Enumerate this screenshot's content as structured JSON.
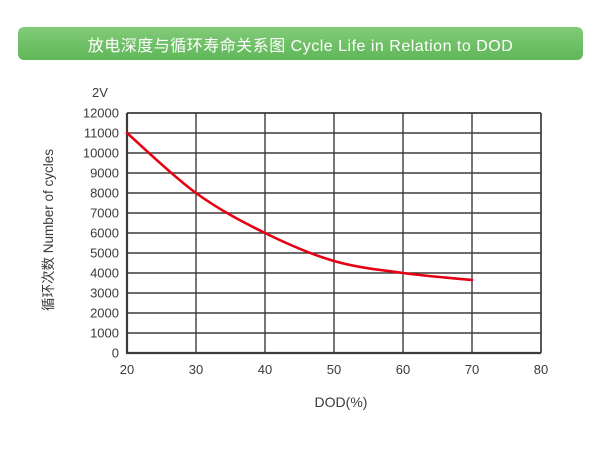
{
  "banner": {
    "title": "放电深度与循环寿命关系图 Cycle Life in Relation to DOD",
    "bg_top": "#82cb78",
    "bg_bottom": "#5fb758",
    "text_color": "#ffffff"
  },
  "chart_data": {
    "type": "line",
    "title": "放电深度与循环寿命关系图 Cycle Life in Relation to DOD",
    "annotation": "2V",
    "xlabel": "DOD(%)",
    "ylabel": "循环次数 Number of cycles",
    "xlim": [
      20,
      80
    ],
    "ylim": [
      0,
      12000
    ],
    "x_ticks": [
      20,
      30,
      40,
      50,
      60,
      70,
      80
    ],
    "y_ticks": [
      0,
      1000,
      2000,
      3000,
      4000,
      5000,
      6000,
      7000,
      8000,
      9000,
      10000,
      11000,
      12000
    ],
    "grid": true,
    "legend_position": "none",
    "series": [
      {
        "name": "2V",
        "color": "#e60013",
        "x": [
          20,
          30,
          40,
          50,
          60,
          70
        ],
        "y": [
          11000,
          8000,
          6000,
          4600,
          4000,
          3650
        ]
      }
    ],
    "colors": {
      "grid": "#3e3a39",
      "axis": "#3e3a39",
      "text": "#3e3a39",
      "background": "#ffffff"
    }
  }
}
